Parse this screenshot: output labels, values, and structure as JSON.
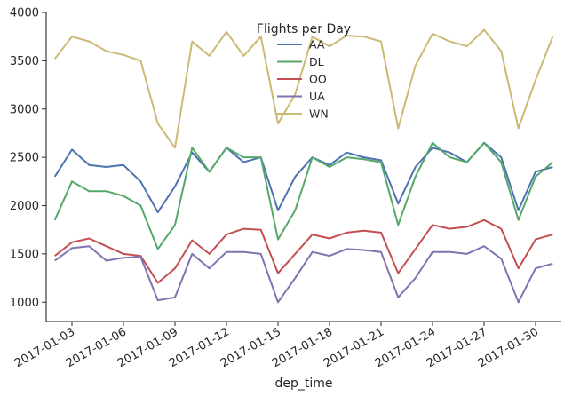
{
  "chart_data": {
    "type": "line",
    "title": "",
    "xlabel": "dep_time",
    "ylabel": "",
    "legend_title": "Flights per Day",
    "legend_position": "top-center",
    "grid": false,
    "xlim": [
      "2017-01-01T12:00",
      "2017-01-31T12:00"
    ],
    "ylim": [
      800,
      4000
    ],
    "yticks": [
      1000,
      1500,
      2000,
      2500,
      3000,
      3500,
      4000
    ],
    "xticks": [
      "2017-01-03",
      "2017-01-06",
      "2017-01-09",
      "2017-01-12",
      "2017-01-15",
      "2017-01-18",
      "2017-01-21",
      "2017-01-24",
      "2017-01-27",
      "2017-01-30"
    ],
    "x": [
      "2017-01-02",
      "2017-01-03",
      "2017-01-04",
      "2017-01-05",
      "2017-01-06",
      "2017-01-07",
      "2017-01-08",
      "2017-01-09",
      "2017-01-10",
      "2017-01-11",
      "2017-01-12",
      "2017-01-13",
      "2017-01-14",
      "2017-01-15",
      "2017-01-16",
      "2017-01-17",
      "2017-01-18",
      "2017-01-19",
      "2017-01-20",
      "2017-01-21",
      "2017-01-22",
      "2017-01-23",
      "2017-01-24",
      "2017-01-25",
      "2017-01-26",
      "2017-01-27",
      "2017-01-28",
      "2017-01-29",
      "2017-01-30",
      "2017-01-31"
    ],
    "series": [
      {
        "name": "AA",
        "color": "#4c72b0",
        "values": [
          2300,
          2580,
          2420,
          2400,
          2420,
          2250,
          1930,
          2200,
          2550,
          2350,
          2600,
          2450,
          2500,
          1950,
          2300,
          2500,
          2420,
          2550,
          2500,
          2470,
          2020,
          2400,
          2600,
          2550,
          2450,
          2650,
          2500,
          1950,
          2350,
          2400
        ]
      },
      {
        "name": "DL",
        "color": "#55a868",
        "values": [
          1850,
          2250,
          2150,
          2150,
          2100,
          2000,
          1550,
          1800,
          2600,
          2350,
          2600,
          2500,
          2500,
          1650,
          1950,
          2500,
          2400,
          2500,
          2480,
          2450,
          1800,
          2300,
          2650,
          2500,
          2450,
          2650,
          2450,
          1850,
          2300,
          2450
        ]
      },
      {
        "name": "OO",
        "color": "#c44e52",
        "values": [
          1480,
          1620,
          1660,
          1580,
          1500,
          1480,
          1200,
          1350,
          1640,
          1500,
          1700,
          1760,
          1750,
          1300,
          1500,
          1700,
          1660,
          1720,
          1740,
          1720,
          1300,
          1550,
          1800,
          1760,
          1780,
          1850,
          1760,
          1350,
          1650,
          1700
        ]
      },
      {
        "name": "UA",
        "color": "#8172b2",
        "values": [
          1430,
          1560,
          1580,
          1430,
          1460,
          1470,
          1020,
          1050,
          1500,
          1350,
          1520,
          1520,
          1500,
          1000,
          1250,
          1520,
          1480,
          1550,
          1540,
          1520,
          1050,
          1250,
          1520,
          1520,
          1500,
          1580,
          1450,
          1000,
          1350,
          1400
        ]
      },
      {
        "name": "WN",
        "color": "#ccb974",
        "values": [
          3520,
          3750,
          3700,
          3600,
          3560,
          3500,
          2850,
          2600,
          3700,
          3550,
          3800,
          3550,
          3750,
          2850,
          3150,
          3750,
          3650,
          3760,
          3750,
          3700,
          2800,
          3450,
          3780,
          3700,
          3650,
          3820,
          3600,
          2800,
          3300,
          3750
        ]
      }
    ]
  }
}
